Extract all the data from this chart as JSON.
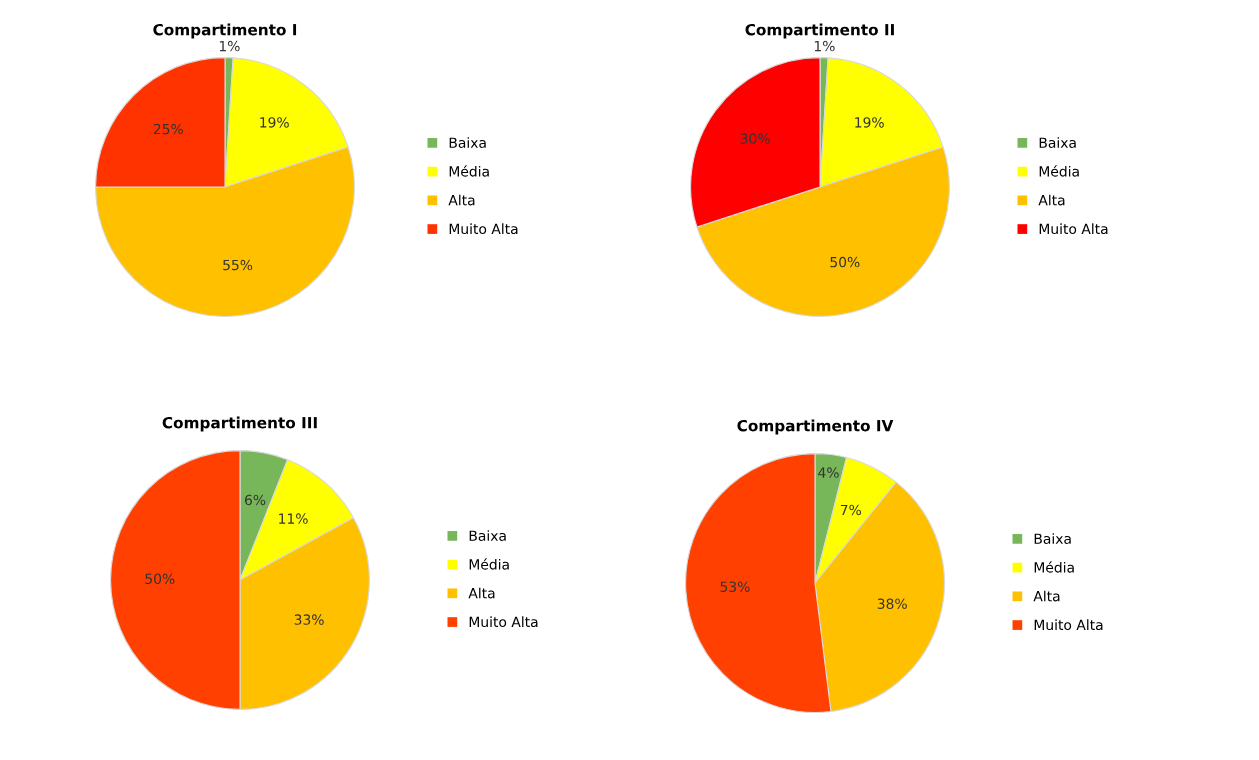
{
  "chart_data": [
    {
      "type": "pie",
      "title": "Compartimento I",
      "categories": [
        "Baixa",
        "Média",
        "Alta",
        "Muito Alta"
      ],
      "values": [
        1,
        19,
        55,
        25
      ],
      "colors": [
        "#77b75a",
        "#ffff00",
        "#ffc000",
        "#ff3300"
      ],
      "value_labels": [
        "1%",
        "19%",
        "55%",
        "25%"
      ],
      "legend": "right"
    },
    {
      "type": "pie",
      "title": "Compartimento II",
      "categories": [
        "Baixa",
        "Média",
        "Alta",
        "Muito Alta"
      ],
      "values": [
        1,
        19,
        50,
        30
      ],
      "colors": [
        "#77b75a",
        "#ffff00",
        "#ffc000",
        "#ff0000"
      ],
      "value_labels": [
        "1%",
        "19%",
        "50%",
        "30%"
      ],
      "legend": "right"
    },
    {
      "type": "pie",
      "title": "Compartimento III",
      "categories": [
        "Baixa",
        "Média",
        "Alta",
        "Muito Alta"
      ],
      "values": [
        6,
        11,
        33,
        50
      ],
      "colors": [
        "#77b75a",
        "#ffff00",
        "#ffc000",
        "#ff4000"
      ],
      "value_labels": [
        "6%",
        "11%",
        "33%",
        "50%"
      ],
      "legend": "right"
    },
    {
      "type": "pie",
      "title": "Compartimento IV",
      "categories": [
        "Baixa",
        "Média",
        "Alta",
        "Muito Alta"
      ],
      "values": [
        4,
        7,
        38,
        53
      ],
      "colors": [
        "#77b75a",
        "#ffff00",
        "#ffc000",
        "#ff4000"
      ],
      "value_labels": [
        "4%",
        "7%",
        "38%",
        "53%"
      ],
      "legend": "right"
    }
  ]
}
